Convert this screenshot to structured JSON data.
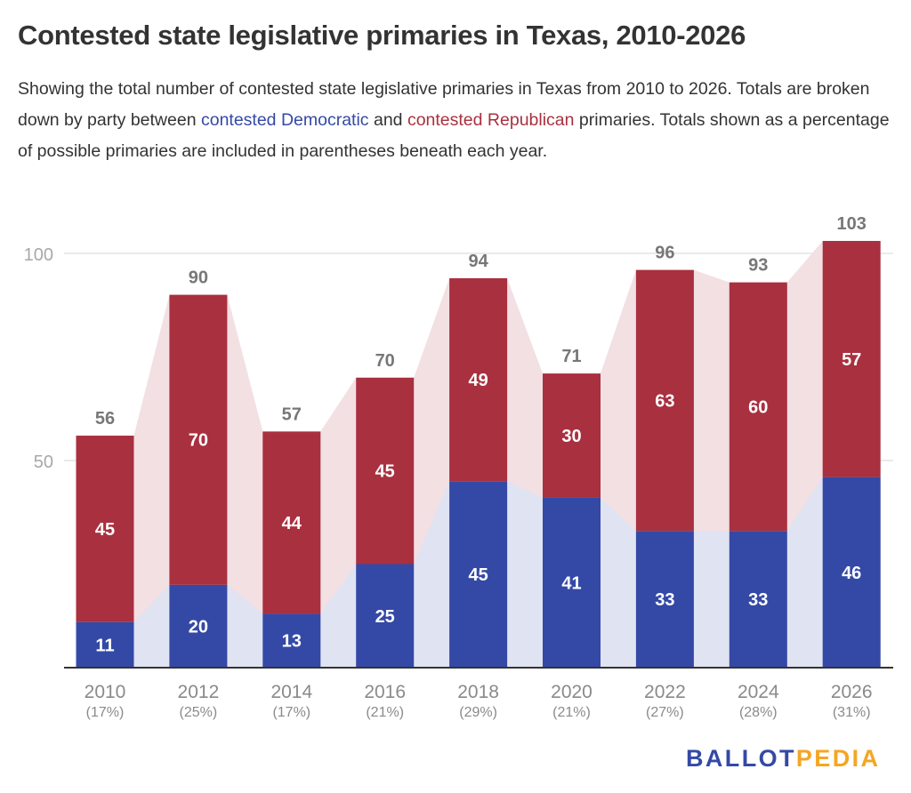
{
  "title": "Contested state legislative primaries in Texas, 2010-2026",
  "subtitle": {
    "part1": "Showing the total number of contested state legislative primaries in Texas from 2010 to 2026. Totals are broken down by party between ",
    "dem_link": "contested Democratic",
    "part2": " and ",
    "rep_link": "contested Republican",
    "part3": " primaries. Totals shown as a percentage of possible primaries are included in parentheses beneath each year."
  },
  "logo": {
    "part1": "BALLOT",
    "part2": "PEDIA"
  },
  "colors": {
    "democratic": "#3449a6",
    "republican": "#a9303f",
    "dem_area": "#e0e3f2",
    "rep_area": "#f2e0e3",
    "logo_blue": "#3449a6",
    "logo_orange": "#f4a624"
  },
  "chart_data": {
    "type": "bar",
    "stacked": true,
    "title": "Contested state legislative primaries in Texas, 2010-2026",
    "xlabel": "",
    "ylabel": "",
    "ylim": [
      0,
      105
    ],
    "yticks": [
      50,
      100
    ],
    "grid": true,
    "categories": [
      "2010",
      "2012",
      "2014",
      "2016",
      "2018",
      "2020",
      "2022",
      "2024",
      "2026"
    ],
    "category_sublabels": [
      "(17%)",
      "(25%)",
      "(17%)",
      "(21%)",
      "(29%)",
      "(21%)",
      "(27%)",
      "(28%)",
      "(31%)"
    ],
    "series": [
      {
        "name": "Contested Democratic",
        "values": [
          11,
          20,
          13,
          25,
          45,
          41,
          33,
          33,
          46
        ]
      },
      {
        "name": "Contested Republican",
        "values": [
          45,
          70,
          44,
          45,
          49,
          30,
          63,
          60,
          57
        ]
      }
    ],
    "totals": [
      56,
      90,
      57,
      70,
      94,
      71,
      96,
      93,
      103
    ]
  }
}
